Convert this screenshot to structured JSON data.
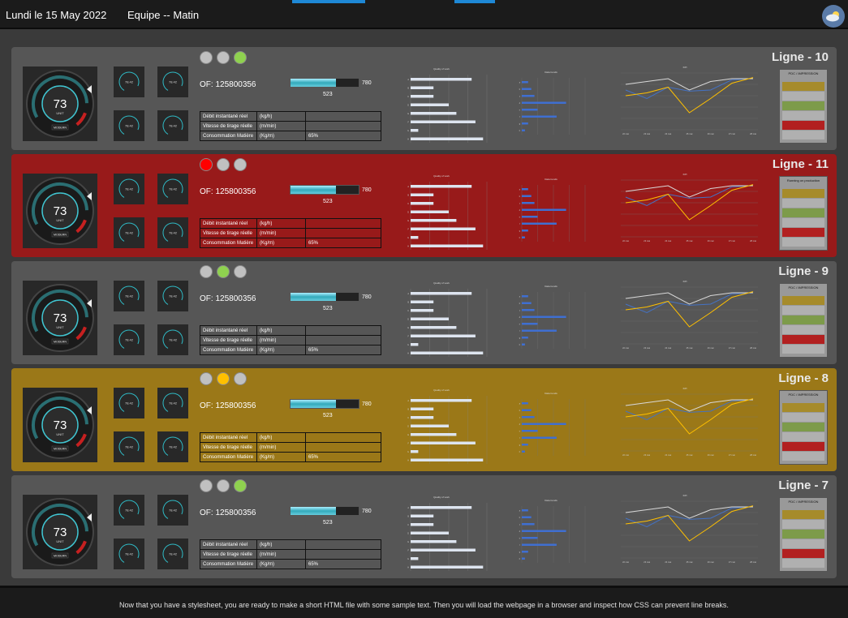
{
  "header": {
    "date": "Lundi le 15 May 2022",
    "team": "Equipe  --  Matin",
    "weather_icon": "cloud-sun-icon"
  },
  "footer": {
    "message": "Now that you have a stylesheet, you are ready to make a short HTML file with some sample text. Then you will load the webpage in a browser and inspect how CSS can prevent line breaks."
  },
  "common": {
    "gauge_value": "73",
    "gauge_unit": "UNIT",
    "gauge_brand": "MODERN",
    "mini_value": "78.42",
    "of_label": "OF:  125800356",
    "progress_value": "523",
    "progress_max": "780",
    "progress_fraction": 0.67,
    "rows": [
      {
        "label": "Débit instantané réel",
        "unit": "(kg/h)",
        "value": ""
      },
      {
        "label": "Vitesse de tirage réelle",
        "unit": "(m/min)",
        "value": ""
      },
      {
        "label": "Consommation Matière",
        "unit": "(Kg/m)",
        "value": "65%"
      }
    ],
    "chart1_title": "Quality of work",
    "chart2_title": "Data trends",
    "chart3_title": "KPI"
  },
  "lines": [
    {
      "name": "Ligne - 10",
      "bg": "#565656",
      "lights": [
        "#c0c0c0",
        "#c0c0c0",
        "#8fd14f"
      ],
      "status_header": "PDC / IMPRESSION"
    },
    {
      "name": "Ligne - 11",
      "bg": "#981a1a",
      "lights": [
        "#ff0000",
        "#c0c0c0",
        "#c0c0c0"
      ],
      "status_header": "Running on production"
    },
    {
      "name": "Ligne - 9",
      "bg": "#565656",
      "lights": [
        "#c0c0c0",
        "#8fd14f",
        "#c0c0c0"
      ],
      "status_header": "PDC / IMPRESSION"
    },
    {
      "name": "Ligne - 8",
      "bg": "#9b7818",
      "lights": [
        "#c0c0c0",
        "#ffc000",
        "#c0c0c0"
      ],
      "status_header": "PDC / IMPRESSION"
    },
    {
      "name": "Ligne - 7",
      "bg": "#565656",
      "lights": [
        "#c0c0c0",
        "#c0c0c0",
        "#8fd14f"
      ],
      "status_header": "PDC / IMPRESSION"
    }
  ],
  "status_colors": [
    "#a68b2b",
    "#b0b0b0",
    "#7d9b4a",
    "#b0b0b0",
    "#b22020",
    "#b0b0b0"
  ],
  "chart_data": [
    {
      "type": "bar",
      "categories": [
        "A",
        "B",
        "C",
        "D",
        "E",
        "F",
        "G",
        "H"
      ],
      "values": [
        0.8,
        0.3,
        0.3,
        0.5,
        0.6,
        0.85,
        0.1,
        0.95
      ],
      "xlim": [
        0,
        1
      ]
    },
    {
      "type": "bar",
      "categories": [
        "a",
        "b",
        "c",
        "d",
        "e",
        "f",
        "g",
        "h"
      ],
      "series": [
        {
          "values": [
            10,
            15,
            20,
            70,
            25,
            55,
            10,
            5
          ]
        }
      ]
    },
    {
      "type": "line",
      "x": [
        "22 mai",
        "23 mai",
        "24 mai",
        "25 mai",
        "26 mai",
        "27 mai",
        "28 mai"
      ],
      "series": [
        {
          "values": [
            70,
            55,
            75,
            68,
            70,
            88,
            90
          ]
        },
        {
          "values": [
            80,
            85,
            90,
            70,
            85,
            90,
            90
          ]
        },
        {
          "values": [
            60,
            65,
            75,
            30,
            55,
            82,
            92
          ]
        }
      ],
      "ylim": [
        0,
        100
      ]
    }
  ]
}
